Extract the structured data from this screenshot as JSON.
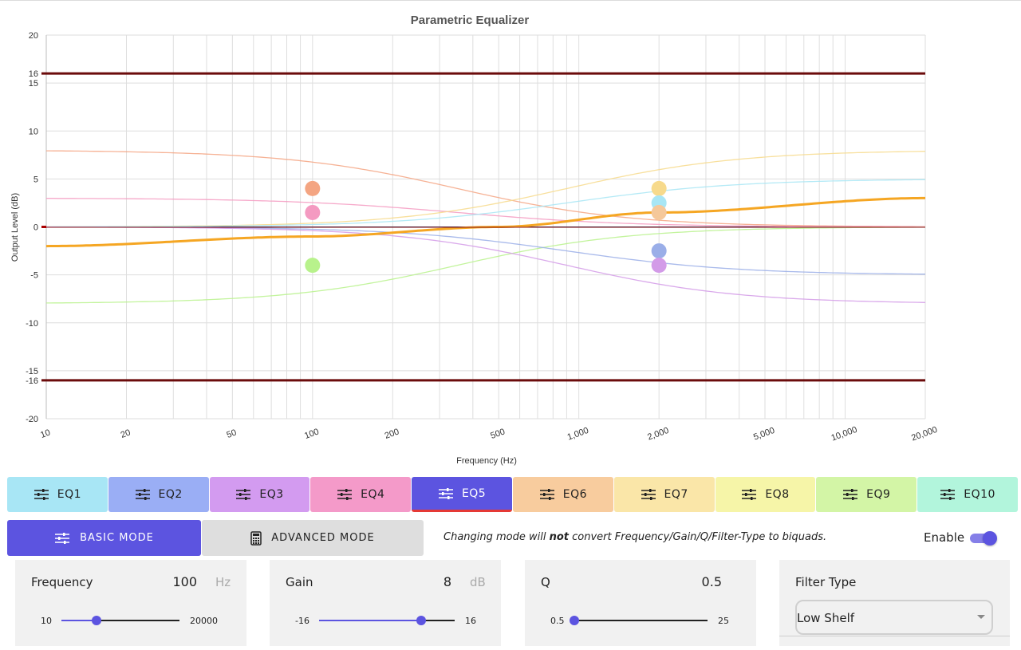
{
  "chart_data": {
    "type": "line",
    "title": "Parametric Equalizer",
    "xlabel": "Frequency (Hz)",
    "ylabel": "Output Level (dB)",
    "xscale": "log",
    "xlim": [
      10,
      20000
    ],
    "ylim": [
      -20,
      20
    ],
    "x_ticks": [
      "10",
      "20",
      "50",
      "100",
      "200",
      "500",
      "1,000",
      "2,000",
      "5,000",
      "10,000",
      "20,000"
    ],
    "y_ticks": [
      "20",
      "16",
      "15",
      "10",
      "5",
      "0",
      "-5",
      "-10",
      "-15",
      "-16",
      "-20"
    ],
    "grid": true,
    "limit_lines": [
      16,
      -16
    ],
    "series": [
      {
        "color": "#f4a582",
        "shelf": "low",
        "fc": 100,
        "gain": 8,
        "emphasis": false
      },
      {
        "color": "#f49ac1",
        "shelf": "low",
        "fc": 100,
        "gain": 3,
        "emphasis": false
      },
      {
        "color": "#b8f28c",
        "shelf": "low",
        "fc": 100,
        "gain": -8,
        "emphasis": false
      },
      {
        "color": "#f7da8c",
        "shelf": "high",
        "fc": 2000,
        "gain": 8,
        "emphasis": false
      },
      {
        "color": "#a8e6f5",
        "shelf": "high",
        "fc": 2000,
        "gain": 5,
        "emphasis": false
      },
      {
        "color": "#9aaee8",
        "shelf": "high",
        "fc": 2000,
        "gain": -5,
        "emphasis": false
      },
      {
        "color": "#d39be8",
        "shelf": "high",
        "fc": 2000,
        "gain": -8,
        "emphasis": false
      },
      {
        "color": "#f5a623",
        "shelf": "combined",
        "values_at": {
          "10": -2,
          "100": -1,
          "500": 0,
          "2000": 1.5,
          "20000": 3
        },
        "emphasis": true
      }
    ],
    "points": [
      {
        "x": 100,
        "y": 4,
        "color": "#f4a582"
      },
      {
        "x": 100,
        "y": 1.5,
        "color": "#f49ac1"
      },
      {
        "x": 100,
        "y": -4,
        "color": "#b8f28c"
      },
      {
        "x": 2000,
        "y": 4,
        "color": "#f7da8c"
      },
      {
        "x": 2000,
        "y": 2.5,
        "color": "#a8e6f5"
      },
      {
        "x": 2000,
        "y": 1.5,
        "color": "#f5c89a"
      },
      {
        "x": 2000,
        "y": -2.5,
        "color": "#9aaee8"
      },
      {
        "x": 2000,
        "y": -4,
        "color": "#d39be8"
      }
    ]
  },
  "eq_tabs": [
    {
      "label": "EQ1",
      "color": "#a8e6f5"
    },
    {
      "label": "EQ2",
      "color": "#9aaef5"
    },
    {
      "label": "EQ3",
      "color": "#d39bf0"
    },
    {
      "label": "EQ4",
      "color": "#f49ac9"
    },
    {
      "label": "EQ5",
      "color": "#5c54e0",
      "active": true
    },
    {
      "label": "EQ6",
      "color": "#f8cc9e"
    },
    {
      "label": "EQ7",
      "color": "#fae6a8"
    },
    {
      "label": "EQ8",
      "color": "#f6f5a8"
    },
    {
      "label": "EQ9",
      "color": "#d3f5a6"
    },
    {
      "label": "EQ10",
      "color": "#b2f5dc"
    }
  ],
  "modes": {
    "basic_label": "BASIC MODE",
    "advanced_label": "ADVANCED MODE",
    "note_prefix": "Changing mode will ",
    "note_emphasis": "not",
    "note_suffix": " convert Frequency/Gain/Q/Filter-Type to biquads.",
    "enable_label": "Enable",
    "enabled": true
  },
  "params": {
    "frequency": {
      "label": "Frequency",
      "value": "100",
      "unit": "Hz",
      "min": "10",
      "max": "20000",
      "fraction": 0.3
    },
    "gain": {
      "label": "Gain",
      "value": "8",
      "unit": "dB",
      "min": "-16",
      "max": "16",
      "fraction": 0.75
    },
    "q": {
      "label": "Q",
      "value": "0.5",
      "min": "0.5",
      "max": "25",
      "fraction": 0.0
    },
    "filter_type": {
      "label": "Filter Type",
      "value": "Low Shelf"
    }
  }
}
